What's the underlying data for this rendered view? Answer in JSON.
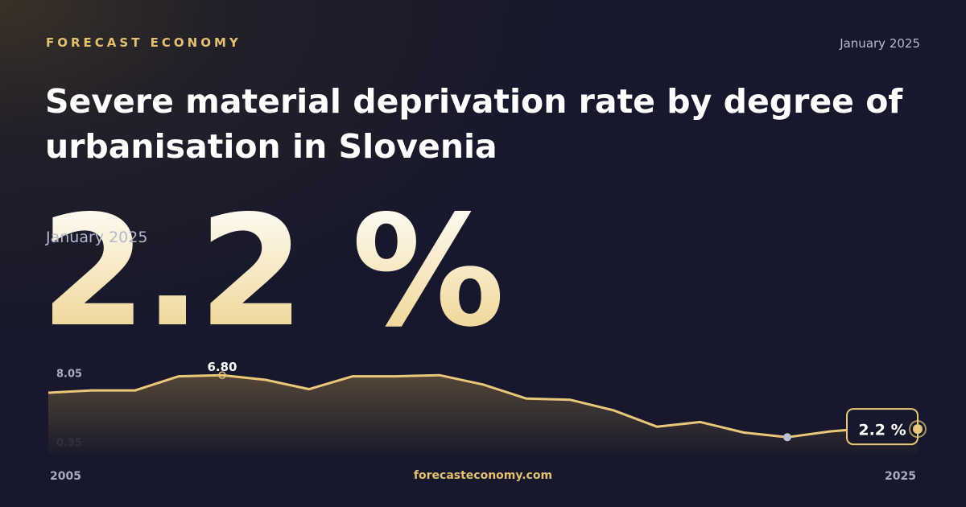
{
  "header": {
    "brand": "FORECAST ECONOMY",
    "date": "January 2025",
    "title": "Severe material deprivation rate by degree of urbanisation in Slovenia",
    "footer": "forecasteconomy.com"
  },
  "chart_data": {
    "type": "line",
    "x": [
      2005,
      2006,
      2007,
      2008,
      2009,
      2010,
      2011,
      2012,
      2013,
      2014,
      2015,
      2016,
      2017,
      2018,
      2019,
      2020,
      2021,
      2022,
      2023,
      2024,
      2025
    ],
    "values": [
      5.3,
      5.5,
      5.5,
      6.7,
      6.8,
      6.4,
      5.6,
      6.7,
      6.7,
      6.8,
      6.0,
      4.8,
      4.7,
      3.8,
      2.4,
      2.8,
      1.9,
      1.5,
      2.0,
      2.3,
      2.2
    ],
    "color": "#e9c77b",
    "xlim": [
      2005,
      2025
    ],
    "xticks": [
      2005,
      2025
    ],
    "ylim": [
      0.35,
      8.05
    ],
    "yticks": [
      0.35,
      8.05
    ],
    "headline": {
      "date": "January 2025",
      "value": 2.2,
      "label": "2.2 %"
    },
    "peak": {
      "value": 6.8,
      "label": "6.80"
    }
  }
}
